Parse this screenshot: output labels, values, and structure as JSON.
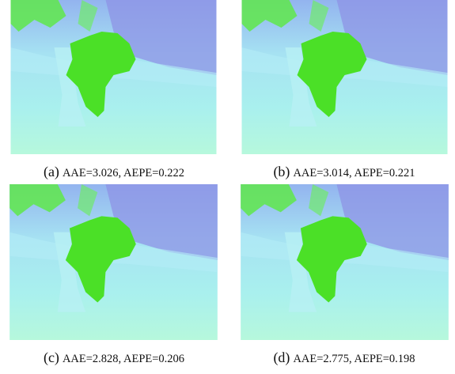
{
  "panels": [
    {
      "label": "(a)",
      "caption": "AAE=3.026, AEPE=0.222"
    },
    {
      "label": "(b)",
      "caption": "AAE=3.014, AEPE=0.221"
    },
    {
      "label": "(c)",
      "caption": "AAE=2.828, AEPE=0.206"
    },
    {
      "label": "(d)",
      "caption": "AAE=2.775, AEPE=0.198"
    }
  ]
}
